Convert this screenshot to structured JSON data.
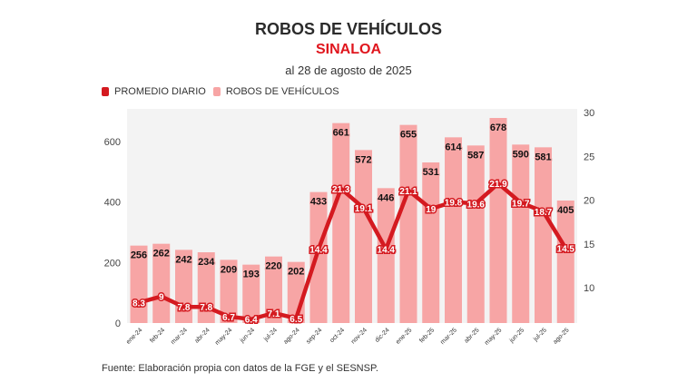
{
  "header": {
    "title": "ROBOS DE VEHÍCULOS",
    "subtitle": "SINALOA",
    "date": "al 28 de agosto de 2025"
  },
  "legend": [
    {
      "label": "PROMEDIO DIARIO",
      "color": "#d41a20"
    },
    {
      "label": "ROBOS DE VEHÍCULOS",
      "color": "#f7a5a5"
    }
  ],
  "source": "Fuente: Elaboración propia con datos de la FGE y el SESNSP.",
  "chart_data": {
    "type": "bar+line",
    "title": "ROBOS DE VEHÍCULOS",
    "categories": [
      "ene-24",
      "feb-24",
      "mar-24",
      "abr-24",
      "may-24",
      "jun-24",
      "jul-24",
      "ago-24",
      "sep-24",
      "oct-24",
      "nov-24",
      "dic-24",
      "ene-25",
      "feb-25",
      "mar-25",
      "abr-25",
      "may-25",
      "jun-25",
      "jul-25",
      "ago-25"
    ],
    "series": [
      {
        "name": "ROBOS DE VEHÍCULOS",
        "type": "bar",
        "axis": "left",
        "color": "#f7a5a5",
        "values": [
          256,
          262,
          242,
          234,
          209,
          193,
          220,
          202,
          433,
          661,
          572,
          446,
          655,
          531,
          614,
          587,
          678,
          590,
          581,
          405
        ]
      },
      {
        "name": "PROMEDIO DIARIO",
        "type": "line",
        "axis": "right",
        "color": "#d41a20",
        "values": [
          8.3,
          9,
          7.8,
          7.8,
          6.7,
          6.4,
          7.1,
          6.5,
          14.4,
          21.3,
          19.1,
          14.4,
          21.1,
          19,
          19.8,
          19.6,
          21.9,
          19.7,
          18.7,
          14.5
        ]
      }
    ],
    "left_axis": {
      "ticks": [
        0,
        200,
        400,
        600
      ],
      "range": [
        0,
        700
      ]
    },
    "right_axis": {
      "ticks": [
        10,
        15,
        20,
        25,
        30
      ],
      "range": [
        5.6,
        30
      ]
    },
    "grid": false,
    "legend_position": "top-left"
  }
}
